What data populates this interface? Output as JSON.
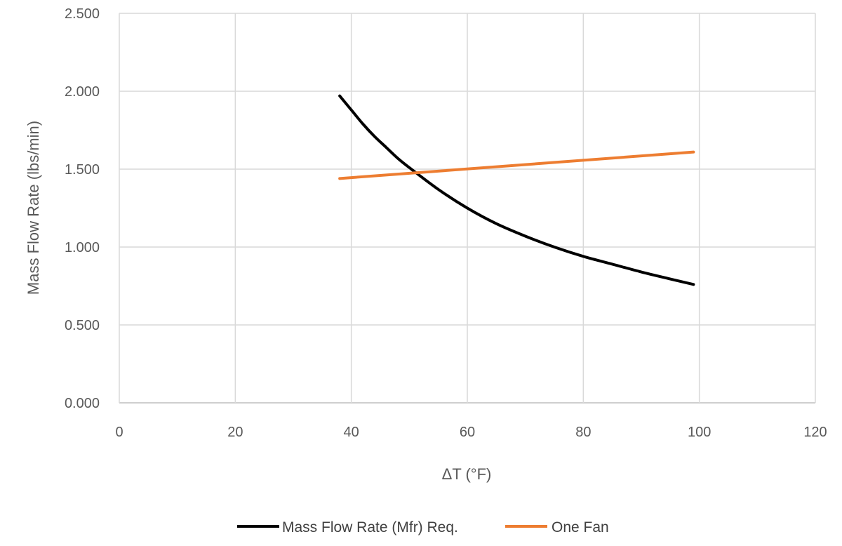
{
  "chart_data": {
    "type": "line",
    "title": "",
    "xlabel": "ΔT (°F)",
    "ylabel": "Mass Flow Rate (lbs/min)",
    "xlim": [
      0,
      120
    ],
    "ylim": [
      0,
      2.5
    ],
    "x_ticks": [
      "0",
      "20",
      "40",
      "60",
      "80",
      "100",
      "120"
    ],
    "y_ticks": [
      "0.000",
      "0.500",
      "1.000",
      "1.500",
      "2.000",
      "2.500"
    ],
    "grid": true,
    "legend_position": "bottom",
    "series": [
      {
        "name": "Mass Flow Rate (Mfr) Req.",
        "color": "#000000",
        "x": [
          38,
          40,
          42,
          44,
          46,
          48,
          50,
          55,
          60,
          65,
          70,
          75,
          80,
          85,
          90,
          95,
          99
        ],
        "y": [
          1.97,
          1.88,
          1.79,
          1.71,
          1.64,
          1.57,
          1.51,
          1.37,
          1.25,
          1.15,
          1.07,
          1.0,
          0.94,
          0.89,
          0.84,
          0.795,
          0.76
        ]
      },
      {
        "name": "One Fan",
        "color": "#ED7D31",
        "x": [
          38,
          99
        ],
        "y": [
          1.44,
          1.61
        ]
      }
    ]
  }
}
